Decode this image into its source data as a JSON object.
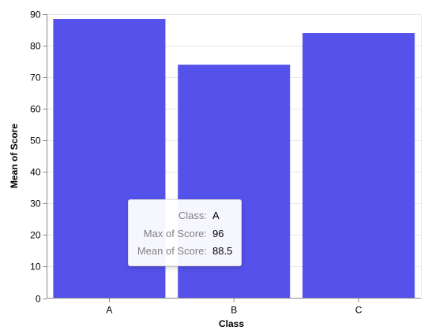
{
  "chart_data": {
    "type": "bar",
    "categories": [
      "A",
      "B",
      "C"
    ],
    "values": [
      88.5,
      74,
      84
    ],
    "xlabel": "Class",
    "ylabel": "Mean of Score",
    "ylim": [
      0,
      90
    ],
    "yticks": [
      0,
      10,
      20,
      30,
      40,
      50,
      60,
      70,
      80,
      90
    ],
    "bar_color": "#5552eb",
    "grid": true
  },
  "tooltip": {
    "rows": [
      {
        "key": "Class:",
        "value": "A"
      },
      {
        "key": "Max of Score:",
        "value": "96"
      },
      {
        "key": "Mean of Score:",
        "value": "88.5"
      }
    ]
  }
}
